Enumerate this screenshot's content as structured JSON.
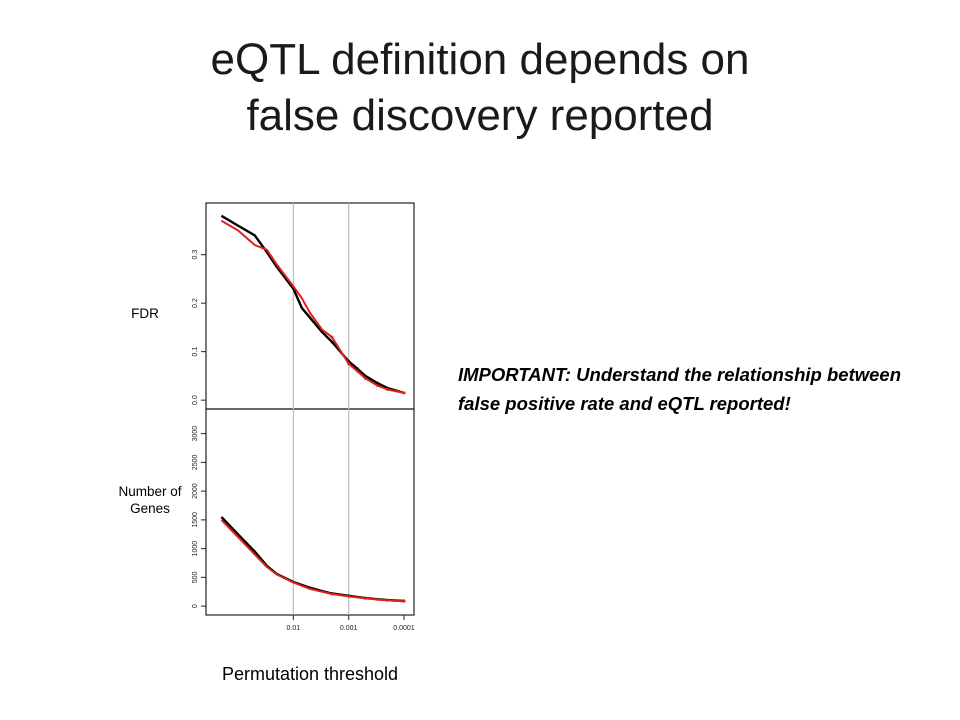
{
  "slide": {
    "title_line1": "eQTL definition depends on",
    "title_line2": "false discovery reported",
    "note": "IMPORTANT: Understand the relationship between false positive rate and eQTL reported!"
  },
  "chart_data": {
    "type": "line",
    "xlabel": "Permutation threshold",
    "x_scale": "log-reversed",
    "xlim": [
      0.25,
      0.0001
    ],
    "x_ticks": [
      "0.01",
      "0.001",
      "0.0001"
    ],
    "x_tick_values": [
      0.01,
      0.001,
      0.0001
    ],
    "vertical_reference_lines": [
      0.01,
      0.001
    ],
    "panels": [
      {
        "name": "fdr",
        "ylabel": "FDR",
        "ylim": [
          -0.01,
          0.39
        ],
        "y_ticks": [
          "0.0",
          "0.1",
          "0.2",
          "0.3"
        ],
        "y_tick_values": [
          0.0,
          0.1,
          0.2,
          0.3
        ],
        "series": [
          {
            "color": "#000000",
            "x": [
              0.2,
              0.1,
              0.05,
              0.03,
              0.02,
              0.01,
              0.007,
              0.005,
              0.003,
              0.002,
              0.001,
              0.0007,
              0.0005,
              0.0003,
              0.0002,
              0.0001
            ],
            "y": [
              0.38,
              0.36,
              0.34,
              0.305,
              0.275,
              0.23,
              0.19,
              0.17,
              0.14,
              0.12,
              0.08,
              0.065,
              0.05,
              0.035,
              0.025,
              0.015
            ]
          },
          {
            "color": "#e0201b",
            "x": [
              0.2,
              0.1,
              0.05,
              0.03,
              0.02,
              0.01,
              0.007,
              0.005,
              0.003,
              0.002,
              0.001,
              0.0007,
              0.0005,
              0.0003,
              0.0002,
              0.0001
            ],
            "y": [
              0.37,
              0.35,
              0.32,
              0.31,
              0.28,
              0.235,
              0.21,
              0.18,
              0.145,
              0.13,
              0.075,
              0.06,
              0.045,
              0.03,
              0.022,
              0.015
            ]
          }
        ]
      },
      {
        "name": "genes",
        "ylabel_line1": "Number of",
        "ylabel_line2": "Genes",
        "ylim": [
          -50,
          3150
        ],
        "y_ticks": [
          "0",
          "500",
          "1000",
          "1500",
          "2000",
          "2500",
          "3000"
        ],
        "y_tick_values": [
          0,
          500,
          1000,
          1500,
          2000,
          2500,
          3000
        ],
        "series": [
          {
            "color": "#000000",
            "x": [
              0.2,
              0.1,
              0.05,
              0.03,
              0.02,
              0.01,
              0.005,
              0.003,
              0.002,
              0.001,
              0.0005,
              0.0003,
              0.0002,
              0.0001
            ],
            "y": [
              1550,
              1250,
              950,
              700,
              560,
              420,
              320,
              260,
              220,
              180,
              140,
              120,
              105,
              90
            ]
          },
          {
            "color": "#e0201b",
            "x": [
              0.2,
              0.1,
              0.05,
              0.03,
              0.02,
              0.01,
              0.005,
              0.003,
              0.002,
              0.001,
              0.0005,
              0.0003,
              0.0002,
              0.0001
            ],
            "y": [
              1500,
              1200,
              900,
              680,
              550,
              410,
              300,
              250,
              210,
              170,
              135,
              115,
              100,
              85
            ]
          }
        ]
      }
    ]
  }
}
